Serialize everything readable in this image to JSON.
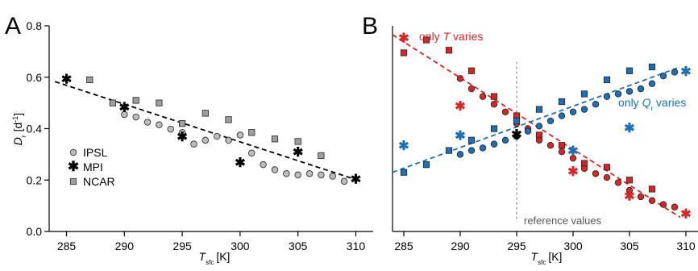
{
  "chart_data": [
    {
      "panel_label": "A",
      "type": "scatter",
      "xlabel_main": "T",
      "xlabel_sub": "sfc",
      "xlabel_unit": "[K]",
      "ylabel_main": "D",
      "ylabel_sub": "r",
      "ylabel_unit": "[d",
      "ylabel_unit_sup": "-1",
      "ylabel_unit_close": "]",
      "xlim": [
        283.5,
        311.5
      ],
      "ylim": [
        0.0,
        0.8
      ],
      "xticks": [
        285,
        290,
        295,
        300,
        305,
        310
      ],
      "yticks": [
        0.0,
        0.2,
        0.4,
        0.6,
        0.8
      ],
      "ytick_labels": [
        "0.0",
        "0.2",
        "0.4",
        "0.6",
        "0.8"
      ],
      "legend_position": "lower-left",
      "series": [
        {
          "name": "IPSL",
          "marker": "circle",
          "color": "#bdbdbd",
          "points": [
            [
              290,
              0.455
            ],
            [
              291,
              0.445
            ],
            [
              292,
              0.425
            ],
            [
              293,
              0.415
            ],
            [
              294,
              0.398
            ],
            [
              295,
              0.385
            ],
            [
              296,
              0.34
            ],
            [
              297,
              0.355
            ],
            [
              298,
              0.37
            ],
            [
              299,
              0.355
            ],
            [
              300,
              0.375
            ],
            [
              301,
              0.305
            ],
            [
              302,
              0.26
            ],
            [
              303,
              0.24
            ],
            [
              304,
              0.225
            ],
            [
              305,
              0.22
            ],
            [
              306,
              0.225
            ],
            [
              307,
              0.22
            ],
            [
              308,
              0.215
            ],
            [
              309,
              0.195
            ]
          ]
        },
        {
          "name": "MPI",
          "marker": "star",
          "color": "#000000",
          "points": [
            [
              285,
              0.595
            ],
            [
              290,
              0.485
            ],
            [
              295,
              0.37
            ],
            [
              300,
              0.27
            ],
            [
              305,
              0.31
            ],
            [
              310,
              0.205
            ]
          ]
        },
        {
          "name": "NCAR",
          "marker": "square",
          "color": "#9e9e9e",
          "points": [
            [
              287,
              0.59
            ],
            [
              289,
              0.5
            ],
            [
              291,
              0.51
            ],
            [
              293,
              0.5
            ],
            [
              295,
              0.42
            ],
            [
              297,
              0.46
            ],
            [
              299,
              0.435
            ],
            [
              301,
              0.385
            ],
            [
              303,
              0.36
            ],
            [
              305,
              0.35
            ],
            [
              307,
              0.295
            ]
          ]
        }
      ],
      "fit_line": {
        "color": "#000000",
        "from": [
          284,
          0.583
        ],
        "to": [
          310,
          0.202
        ]
      }
    },
    {
      "panel_label": "B",
      "type": "scatter",
      "xlabel_main": "T",
      "xlabel_sub": "sfc",
      "xlabel_unit": "[K]",
      "xlim": [
        284,
        310
      ],
      "ylim": [
        0.0,
        0.8
      ],
      "xticks": [
        285,
        290,
        295,
        300,
        305,
        310
      ],
      "annotations": {
        "t_label_pre": "only ",
        "t_label_var": "T",
        "t_label_post": " varies",
        "q_label_pre": "only ",
        "q_label_var": "Q",
        "q_label_sub": "r",
        "q_label_post": " varies",
        "reference_label": "reference values"
      },
      "reference_x": 295,
      "series": [
        {
          "name": "only T varies",
          "color": "#d62728",
          "circles": [
            [
              290,
              0.595
            ],
            [
              291,
              0.555
            ],
            [
              292,
              0.525
            ],
            [
              293,
              0.495
            ],
            [
              294,
              0.465
            ],
            [
              295,
              0.42
            ],
            [
              296,
              0.4
            ],
            [
              297,
              0.355
            ],
            [
              298,
              0.335
            ],
            [
              299,
              0.31
            ],
            [
              300,
              0.285
            ],
            [
              301,
              0.245
            ],
            [
              302,
              0.225
            ],
            [
              303,
              0.21
            ],
            [
              304,
              0.19
            ],
            [
              305,
              0.16
            ],
            [
              306,
              0.135
            ],
            [
              307,
              0.12
            ],
            [
              308,
              0.105
            ],
            [
              309,
              0.095
            ]
          ],
          "squares": [
            [
              285,
              0.695
            ],
            [
              287,
              0.745
            ],
            [
              289,
              0.705
            ],
            [
              291,
              0.625
            ],
            [
              293,
              0.525
            ],
            [
              295,
              0.45
            ],
            [
              297,
              0.375
            ],
            [
              299,
              0.335
            ],
            [
              301,
              0.265
            ],
            [
              303,
              0.25
            ],
            [
              305,
              0.2
            ],
            [
              307,
              0.165
            ]
          ],
          "stars": [
            [
              285,
              0.755
            ],
            [
              290,
              0.49
            ],
            [
              300,
              0.235
            ],
            [
              305,
              0.14
            ],
            [
              310,
              0.07
            ]
          ],
          "fit_from": [
            284,
            0.765
          ],
          "fit_to": [
            309.5,
            0.055
          ]
        },
        {
          "name": "only Qr varies",
          "color": "#1f6fb4",
          "circles": [
            [
              290,
              0.3
            ],
            [
              291,
              0.315
            ],
            [
              292,
              0.325
            ],
            [
              293,
              0.34
            ],
            [
              294,
              0.355
            ],
            [
              295,
              0.37
            ],
            [
              296,
              0.39
            ],
            [
              297,
              0.41
            ],
            [
              298,
              0.43
            ],
            [
              299,
              0.45
            ],
            [
              300,
              0.465
            ],
            [
              301,
              0.475
            ],
            [
              302,
              0.495
            ],
            [
              303,
              0.525
            ],
            [
              304,
              0.535
            ],
            [
              305,
              0.545
            ],
            [
              306,
              0.555
            ],
            [
              307,
              0.575
            ],
            [
              308,
              0.605
            ],
            [
              309,
              0.62
            ]
          ],
          "squares": [
            [
              285,
              0.23
            ],
            [
              287,
              0.26
            ],
            [
              289,
              0.315
            ],
            [
              291,
              0.355
            ],
            [
              293,
              0.4
            ],
            [
              295,
              0.43
            ],
            [
              297,
              0.475
            ],
            [
              299,
              0.505
            ],
            [
              301,
              0.535
            ],
            [
              303,
              0.59
            ],
            [
              305,
              0.625
            ],
            [
              307,
              0.64
            ]
          ],
          "stars": [
            [
              285,
              0.335
            ],
            [
              290,
              0.375
            ],
            [
              300,
              0.315
            ],
            [
              305,
              0.405
            ],
            [
              310,
              0.625
            ]
          ],
          "fit_from": [
            284,
            0.23
          ],
          "fit_to": [
            309.5,
            0.64
          ]
        },
        {
          "name": "reference",
          "color": "#000000",
          "circles": [
            [
              295,
              0.37
            ]
          ],
          "stars": [
            [
              295,
              0.38
            ]
          ]
        }
      ]
    }
  ],
  "colors": {
    "ipsl": "#bdbdbd",
    "ncar": "#9e9e9e",
    "mpi": "#000000",
    "red": "#d62728",
    "blue": "#1f6fb4",
    "reference_line": "#777777"
  }
}
